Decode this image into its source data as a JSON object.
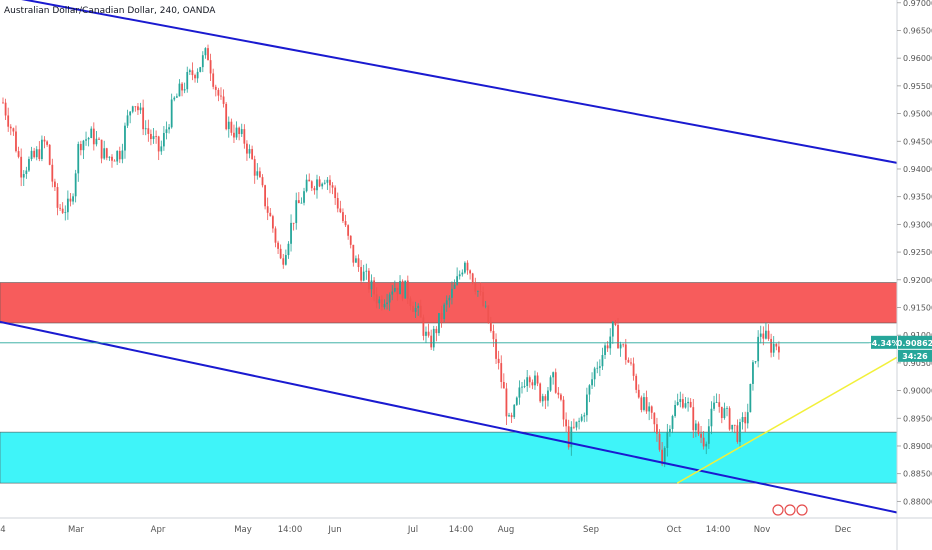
{
  "chart_data": {
    "type": "candlestick",
    "title": "Australian Dollar/Canadian Dollar, 240, OANDA",
    "colors": {
      "up": "#26a69a",
      "down": "#ef5350",
      "resistance_zone": "#f75c5c",
      "support_zone": "#3ff4f9",
      "channel_lines": "#1a1ad0",
      "trend_line": "#f2f03a",
      "price_line": "#26a69a",
      "price_badge": "#26a69a",
      "countdown_badge": "#26a69a"
    },
    "y_axis": {
      "min": 0.877,
      "max": 0.9705,
      "ticks": [
        "0.97000",
        "0.96500",
        "0.96000",
        "0.95500",
        "0.95000",
        "0.94500",
        "0.94000",
        "0.93500",
        "0.93000",
        "0.92500",
        "0.92000",
        "0.91500",
        "0.91000",
        "0.90500",
        "0.90000",
        "0.89500",
        "0.89000",
        "0.88500",
        "0.88000"
      ]
    },
    "x_axis": {
      "ticks": [
        "4",
        "Mar",
        "Apr",
        "May",
        "14:00",
        "Jun",
        "Jul",
        "14:00",
        "Aug",
        "Sep",
        "Oct",
        "14:00",
        "Nov",
        "Dec"
      ]
    },
    "price_path": [
      [
        0,
        0.952
      ],
      [
        0.012,
        0.946
      ],
      [
        0.02,
        0.94
      ],
      [
        0.035,
        0.942
      ],
      [
        0.048,
        0.945
      ],
      [
        0.06,
        0.933
      ],
      [
        0.075,
        0.933
      ],
      [
        0.085,
        0.945
      ],
      [
        0.1,
        0.946
      ],
      [
        0.115,
        0.942
      ],
      [
        0.13,
        0.943
      ],
      [
        0.145,
        0.953
      ],
      [
        0.16,
        0.947
      ],
      [
        0.175,
        0.943
      ],
      [
        0.19,
        0.952
      ],
      [
        0.205,
        0.956
      ],
      [
        0.22,
        0.959
      ],
      [
        0.228,
        0.961
      ],
      [
        0.235,
        0.956
      ],
      [
        0.25,
        0.948
      ],
      [
        0.27,
        0.945
      ],
      [
        0.285,
        0.938
      ],
      [
        0.3,
        0.93
      ],
      [
        0.31,
        0.923
      ],
      [
        0.325,
        0.932
      ],
      [
        0.34,
        0.937
      ],
      [
        0.36,
        0.939
      ],
      [
        0.375,
        0.933
      ],
      [
        0.39,
        0.924
      ],
      [
        0.405,
        0.92
      ],
      [
        0.42,
        0.916
      ],
      [
        0.435,
        0.919
      ],
      [
        0.45,
        0.918
      ],
      [
        0.465,
        0.913
      ],
      [
        0.475,
        0.908
      ],
      [
        0.49,
        0.914
      ],
      [
        0.505,
        0.919
      ],
      [
        0.515,
        0.924
      ],
      [
        0.525,
        0.92
      ],
      [
        0.54,
        0.913
      ],
      [
        0.55,
        0.906
      ],
      [
        0.558,
        0.9
      ],
      [
        0.565,
        0.893
      ],
      [
        0.575,
        0.899
      ],
      [
        0.585,
        0.904
      ],
      [
        0.6,
        0.899
      ],
      [
        0.615,
        0.902
      ],
      [
        0.63,
        0.891
      ],
      [
        0.645,
        0.895
      ],
      [
        0.66,
        0.904
      ],
      [
        0.672,
        0.908
      ],
      [
        0.68,
        0.911
      ],
      [
        0.69,
        0.908
      ],
      [
        0.7,
        0.904
      ],
      [
        0.712,
        0.898
      ],
      [
        0.725,
        0.894
      ],
      [
        0.735,
        0.888
      ],
      [
        0.745,
        0.896
      ],
      [
        0.76,
        0.899
      ],
      [
        0.772,
        0.893
      ],
      [
        0.782,
        0.891
      ],
      [
        0.795,
        0.898
      ],
      [
        0.808,
        0.895
      ],
      [
        0.82,
        0.892
      ],
      [
        0.83,
        0.896
      ],
      [
        0.838,
        0.906
      ],
      [
        0.845,
        0.911
      ],
      [
        0.855,
        0.908
      ],
      [
        0.865,
        0.9086
      ]
    ],
    "drawings": [
      {
        "kind": "zone",
        "name": "resistance-zone",
        "y_top": 0.9195,
        "y_bottom": 0.9122
      },
      {
        "kind": "zone",
        "name": "support-zone",
        "y_top": 0.8925,
        "y_bottom": 0.8833
      },
      {
        "kind": "line",
        "name": "upper-channel-line",
        "from": [
          0,
          0.9714
        ],
        "to": [
          1,
          0.9411
        ]
      },
      {
        "kind": "line",
        "name": "lower-channel-line",
        "from": [
          0,
          0.9124
        ],
        "to": [
          1,
          0.878
        ]
      },
      {
        "kind": "line",
        "name": "yellow-trend-line",
        "from": [
          0.755,
          0.8833
        ],
        "to": [
          1,
          0.906
        ]
      }
    ],
    "last_price": {
      "value": 0.90862,
      "change_label": "-4.34%",
      "price_label": "0.90862",
      "countdown": "34:26"
    }
  }
}
